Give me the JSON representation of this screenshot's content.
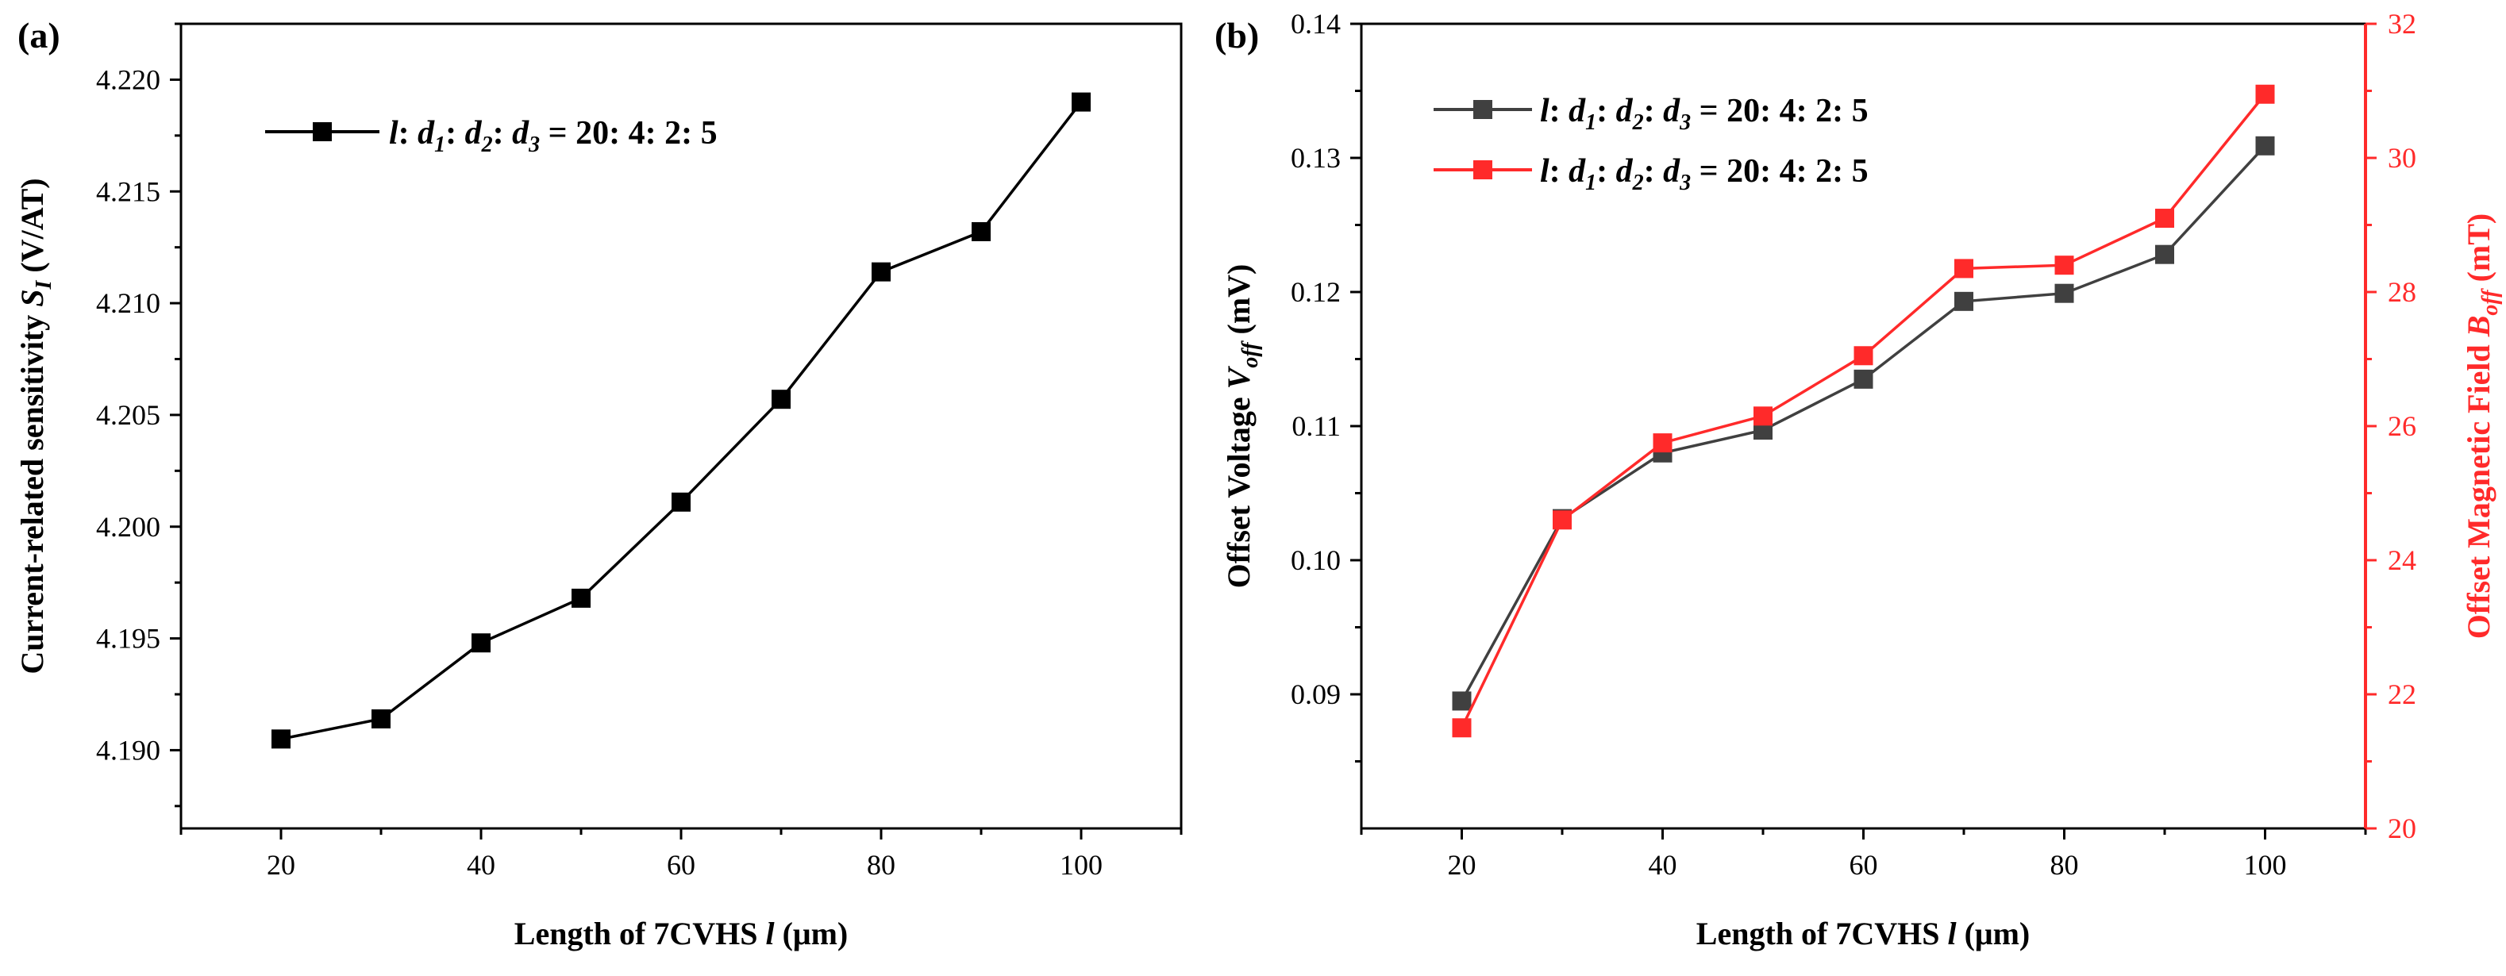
{
  "chart_data": [
    {
      "type": "line",
      "panel_label": "(a)",
      "title": "",
      "xlabel": "Length of 7CVHS l (μm)",
      "ylabel": "Current-related sensitivity S_I (V/AT)",
      "xlim": [
        10,
        110
      ],
      "ylim": [
        4.1865,
        4.2225
      ],
      "xticks": [
        20,
        40,
        60,
        80,
        100
      ],
      "yticks": [
        4.19,
        4.195,
        4.2,
        4.205,
        4.21,
        4.215,
        4.22
      ],
      "xtick_labels": [
        "20",
        "40",
        "60",
        "80",
        "100"
      ],
      "ytick_labels": [
        "4.190",
        "4.195",
        "4.200",
        "4.205",
        "4.210",
        "4.215",
        "4.220"
      ],
      "grid": false,
      "legend": "top-left",
      "series": [
        {
          "name": "l: d1: d2: d3 = 20: 4: 2: 5",
          "color": "#000000",
          "axis": "left",
          "x": [
            20,
            30,
            40,
            50,
            60,
            70,
            80,
            90,
            100
          ],
          "values": [
            4.1905,
            4.1914,
            4.1948,
            4.1968,
            4.2011,
            4.2057,
            4.2114,
            4.2132,
            4.219
          ]
        }
      ]
    },
    {
      "type": "line",
      "panel_label": "(b)",
      "title": "",
      "xlabel": "Length of 7CVHS l (μm)",
      "ylabel": "Offset Voltage V_off (mV)",
      "y2label": "Offset Magnetic Field B_off (mT)",
      "xlim": [
        10,
        110
      ],
      "ylim": [
        0.08,
        0.14
      ],
      "y2lim": [
        20,
        32
      ],
      "xticks": [
        20,
        40,
        60,
        80,
        100
      ],
      "yticks": [
        0.09,
        0.1,
        0.11,
        0.12,
        0.13,
        0.14
      ],
      "y2ticks": [
        20,
        22,
        24,
        26,
        28,
        30,
        32
      ],
      "xtick_labels": [
        "20",
        "40",
        "60",
        "80",
        "100"
      ],
      "ytick_labels": [
        "0.09",
        "0.10",
        "0.11",
        "0.12",
        "0.13",
        "0.14"
      ],
      "y2tick_labels": [
        "20",
        "22",
        "24",
        "26",
        "28",
        "30",
        "32"
      ],
      "grid": false,
      "legend": "top-left",
      "series": [
        {
          "name": "l: d1: d2: d3 = 20: 4: 2: 5",
          "color": "#404040",
          "axis": "left",
          "x": [
            20,
            30,
            40,
            50,
            60,
            70,
            80,
            90,
            100
          ],
          "values": [
            0.0895,
            0.1031,
            0.108,
            0.1097,
            0.1135,
            0.1193,
            0.1199,
            0.1228,
            0.1309
          ]
        },
        {
          "name": "l: d1: d2: d3 = 20: 4: 2: 5",
          "color": "#ff2a2a",
          "axis": "right",
          "x": [
            20,
            30,
            40,
            50,
            60,
            70,
            80,
            90,
            100
          ],
          "values": [
            21.5,
            24.6,
            25.75,
            26.15,
            27.05,
            28.35,
            28.4,
            29.1,
            30.95
          ]
        }
      ]
    }
  ]
}
